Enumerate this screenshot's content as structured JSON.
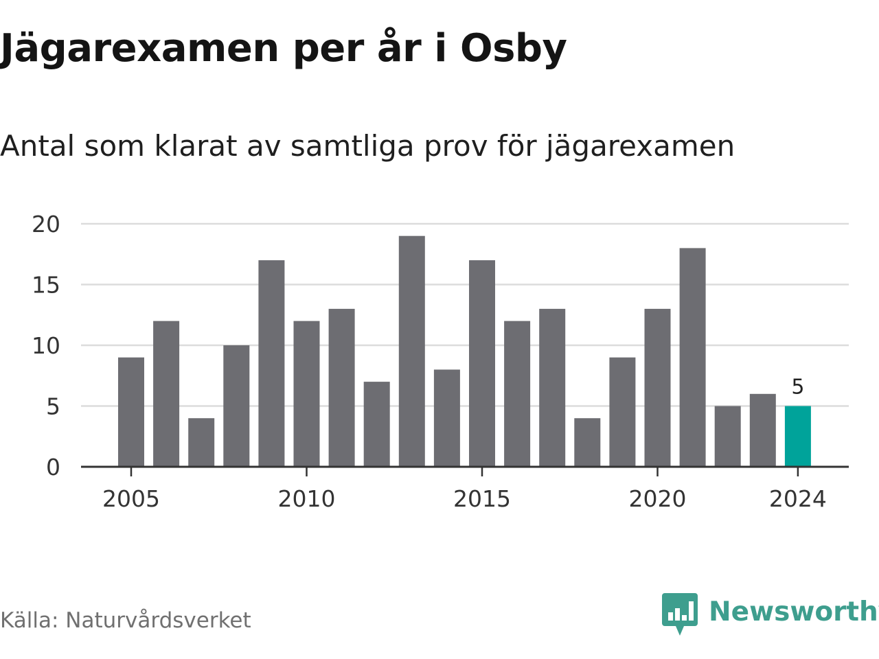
{
  "title": "Jägarexamen per år i Osby",
  "subtitle": "Antal som klarat av samtliga prov för jägarexamen",
  "source": "Källa: Naturvårdsverket",
  "brand": {
    "name": "Newsworthy",
    "color": "#3e9e8e",
    "logo_icon": "newsworthy-bar-chart-logo"
  },
  "colors": {
    "bar": "#6d6d72",
    "highlight": "#00a39a",
    "grid": "#dcdcdc",
    "axis": "#333333",
    "text": "#333333"
  },
  "chart_data": {
    "type": "bar",
    "title": "Jägarexamen per år i Osby",
    "subtitle": "Antal som klarat av samtliga prov för jägarexamen",
    "x": [
      2005,
      2006,
      2007,
      2008,
      2009,
      2010,
      2011,
      2012,
      2013,
      2014,
      2015,
      2016,
      2017,
      2018,
      2019,
      2020,
      2021,
      2022,
      2023,
      2024
    ],
    "values": [
      9,
      12,
      4,
      10,
      17,
      12,
      13,
      7,
      19,
      8,
      17,
      12,
      13,
      4,
      9,
      13,
      18,
      5,
      6,
      5
    ],
    "x_ticks": [
      2005,
      2010,
      2015,
      2020,
      2024
    ],
    "y_ticks": [
      0,
      5,
      10,
      15,
      20
    ],
    "ylim": [
      0,
      20
    ],
    "grid": "horizontal",
    "highlight": {
      "x": 2024,
      "label": "5"
    }
  }
}
